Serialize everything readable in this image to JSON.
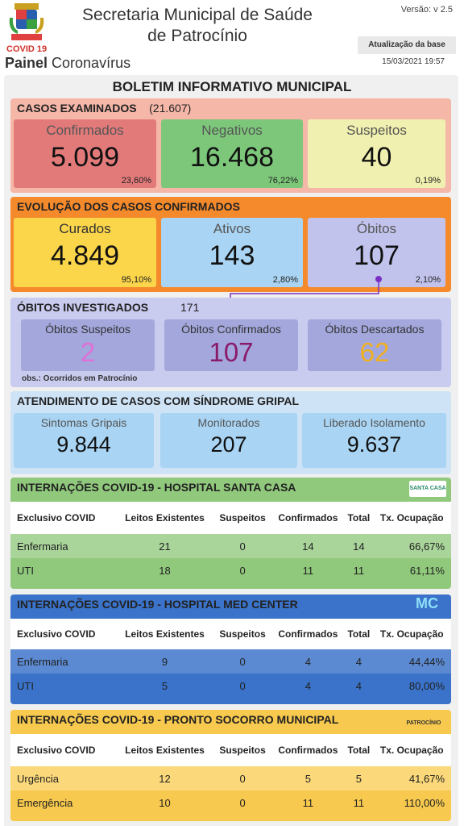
{
  "header": {
    "title_line1": "Secretaria Municipal de Saúde",
    "title_line2": "de Patrocínio",
    "version": "Versão: v 2.5",
    "covid_tag": "COVID 19",
    "painel_bold": "Painel",
    "painel_rest": " Coronavírus",
    "update_button": "Atualização da base",
    "update_date": "15/03/2021 19:57"
  },
  "board_title": "BOLETIM INFORMATIVO MUNICIPAL",
  "casos_examinados": {
    "title": "CASOS EXAMINADOS",
    "total": "(21.607)",
    "cards": [
      {
        "label": "Confirmados",
        "value": "5.099",
        "pct": "23,60%"
      },
      {
        "label": "Negativos",
        "value": "16.468",
        "pct": "76,22%"
      },
      {
        "label": "Suspeitos",
        "value": "40",
        "pct": "0,19%"
      }
    ]
  },
  "evolucao": {
    "title": "EVOLUÇÃO DOS CASOS CONFIRMADOS",
    "cards": [
      {
        "label": "Curados",
        "value": "4.849",
        "pct": "95,10%"
      },
      {
        "label": "Ativos",
        "value": "143",
        "pct": "2,80%"
      },
      {
        "label": "Óbitos",
        "value": "107",
        "pct": "2,10%"
      }
    ]
  },
  "obitos": {
    "title": "ÓBITOS INVESTIGADOS",
    "total": "171",
    "obs": "obs.: Ocorridos em Patrocínio",
    "cards": [
      {
        "label": "Óbitos Suspeitos",
        "value": "2"
      },
      {
        "label": "Óbitos Confirmados",
        "value": "107"
      },
      {
        "label": "Óbitos Descartados",
        "value": "62"
      }
    ]
  },
  "gripal": {
    "title": "ATENDIMENTO DE CASOS COM SÍNDROME GRIPAL",
    "cards": [
      {
        "label": "Sintomas Gripais",
        "value": "9.844"
      },
      {
        "label": "Monitorados",
        "value": "207"
      },
      {
        "label": "Liberado Isolamento",
        "value": "9.637"
      }
    ]
  },
  "hospitals": [
    {
      "title": "INTERNAÇÕES COVID-19 - HOSPITAL SANTA CASA",
      "logo_text": "SANTA CASA",
      "headers": [
        "Exclusivo COVID",
        "Leitos Existentes",
        "Suspeitos",
        "Confirmados",
        "Total",
        "Tx. Ocupação"
      ],
      "rows": [
        [
          "Enfermaria",
          "21",
          "0",
          "14",
          "14",
          "66,67%"
        ],
        [
          "UTI",
          "18",
          "0",
          "11",
          "11",
          "61,11%"
        ]
      ]
    },
    {
      "title": "INTERNAÇÕES COVID-19 - HOSPITAL MED CENTER",
      "logo_text": "MC",
      "headers": [
        "Exclusivo COVID",
        "Leitos Existentes",
        "Suspeitos",
        "Confirmados",
        "Total",
        "Tx. Ocupação"
      ],
      "rows": [
        [
          "Enfermaria",
          "9",
          "0",
          "4",
          "4",
          "44,44%"
        ],
        [
          "UTI",
          "5",
          "0",
          "4",
          "4",
          "80,00%"
        ]
      ]
    },
    {
      "title": "INTERNAÇÕES COVID-19 - PRONTO SOCORRO MUNICIPAL",
      "logo_text": "PATROCÍNIO",
      "headers": [
        "Exclusivo COVID",
        "Leitos Existentes",
        "Suspeitos",
        "Confirmados",
        "Total",
        "Tx. Ocupação"
      ],
      "rows": [
        [
          "Urgência",
          "12",
          "0",
          "5",
          "5",
          "41,67%"
        ],
        [
          "Emergência",
          "10",
          "0",
          "11",
          "11",
          "110,00%"
        ]
      ]
    }
  ],
  "colors": {
    "confirmados": "#e27a7a",
    "negativos": "#7dc77a",
    "suspeitos": "#f0f0b0",
    "curados": "#fbd54a",
    "ativos": "#a9d4f3",
    "obitos": "#c2c3ec",
    "santa_casa": "#90c97c",
    "med_center": "#3a73c9",
    "pronto_socorro": "#f7c94e"
  }
}
